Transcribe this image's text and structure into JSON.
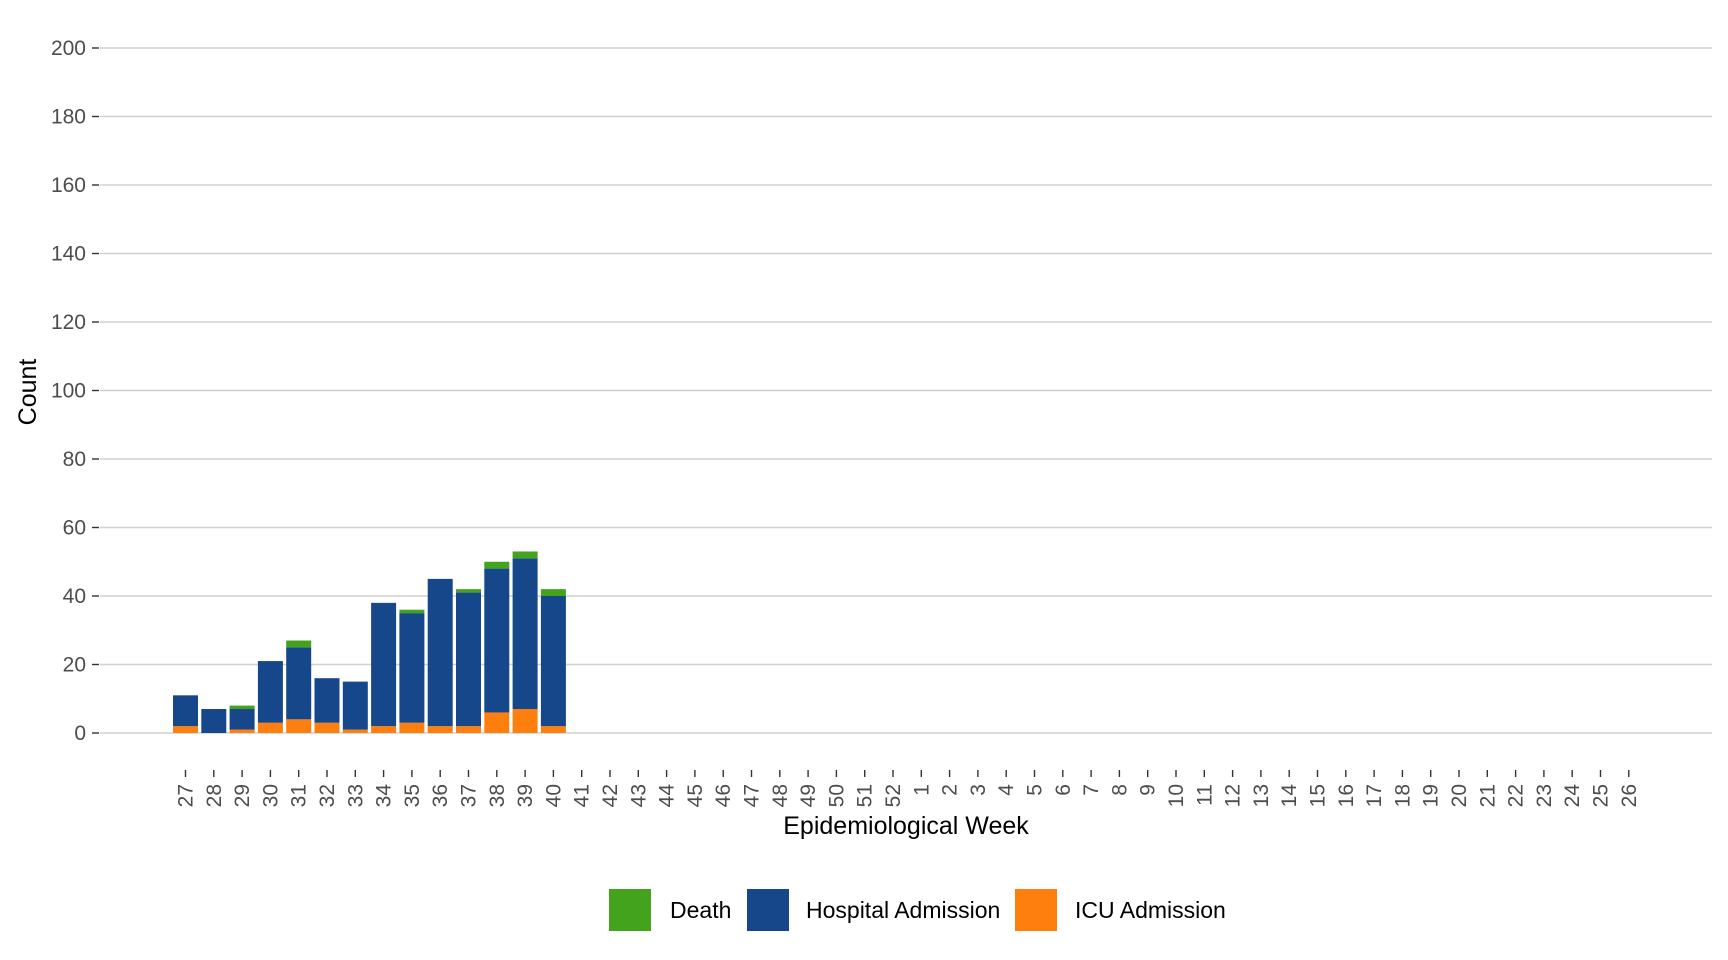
{
  "chart_data": {
    "type": "bar",
    "stacked": true,
    "title": "",
    "xlabel": "Epidemiological Week",
    "ylabel": "Count",
    "ylim": [
      0,
      200
    ],
    "yticks": [
      "0",
      "20",
      "40",
      "60",
      "80",
      "100",
      "120",
      "140",
      "160",
      "180",
      "200"
    ],
    "grid": "horizontal",
    "legend_position": "bottom",
    "categories": [
      "27",
      "28",
      "29",
      "30",
      "31",
      "32",
      "33",
      "34",
      "35",
      "36",
      "37",
      "38",
      "39",
      "40",
      "41",
      "42",
      "43",
      "44",
      "45",
      "46",
      "47",
      "48",
      "49",
      "50",
      "51",
      "52",
      "1",
      "2",
      "3",
      "4",
      "5",
      "6",
      "7",
      "8",
      "9",
      "10",
      "11",
      "12",
      "13",
      "14",
      "15",
      "16",
      "17",
      "18",
      "19",
      "20",
      "21",
      "22",
      "23",
      "24",
      "25",
      "26"
    ],
    "series": [
      {
        "name": "ICU Admission",
        "color": "#ff7f0e",
        "values": [
          2,
          0,
          1,
          3,
          4,
          3,
          1,
          2,
          3,
          2,
          2,
          6,
          7,
          2,
          0,
          0,
          0,
          0,
          0,
          0,
          0,
          0,
          0,
          0,
          0,
          0,
          0,
          0,
          0,
          0,
          0,
          0,
          0,
          0,
          0,
          0,
          0,
          0,
          0,
          0,
          0,
          0,
          0,
          0,
          0,
          0,
          0,
          0,
          0,
          0,
          0,
          0
        ]
      },
      {
        "name": "Hospital Admission",
        "color": "#15478a",
        "values": [
          9,
          7,
          6,
          18,
          21,
          13,
          14,
          36,
          32,
          43,
          39,
          42,
          44,
          38,
          0,
          0,
          0,
          0,
          0,
          0,
          0,
          0,
          0,
          0,
          0,
          0,
          0,
          0,
          0,
          0,
          0,
          0,
          0,
          0,
          0,
          0,
          0,
          0,
          0,
          0,
          0,
          0,
          0,
          0,
          0,
          0,
          0,
          0,
          0,
          0,
          0,
          0
        ]
      },
      {
        "name": "Death",
        "color": "#44a31c",
        "values": [
          0,
          0,
          1,
          0,
          2,
          0,
          0,
          0,
          1,
          0,
          1,
          2,
          2,
          2,
          0,
          0,
          0,
          0,
          0,
          0,
          0,
          0,
          0,
          0,
          0,
          0,
          0,
          0,
          0,
          0,
          0,
          0,
          0,
          0,
          0,
          0,
          0,
          0,
          0,
          0,
          0,
          0,
          0,
          0,
          0,
          0,
          0,
          0,
          0,
          0,
          0,
          0
        ]
      }
    ],
    "legend_order": [
      "Death",
      "Hospital Admission",
      "ICU Admission"
    ]
  }
}
